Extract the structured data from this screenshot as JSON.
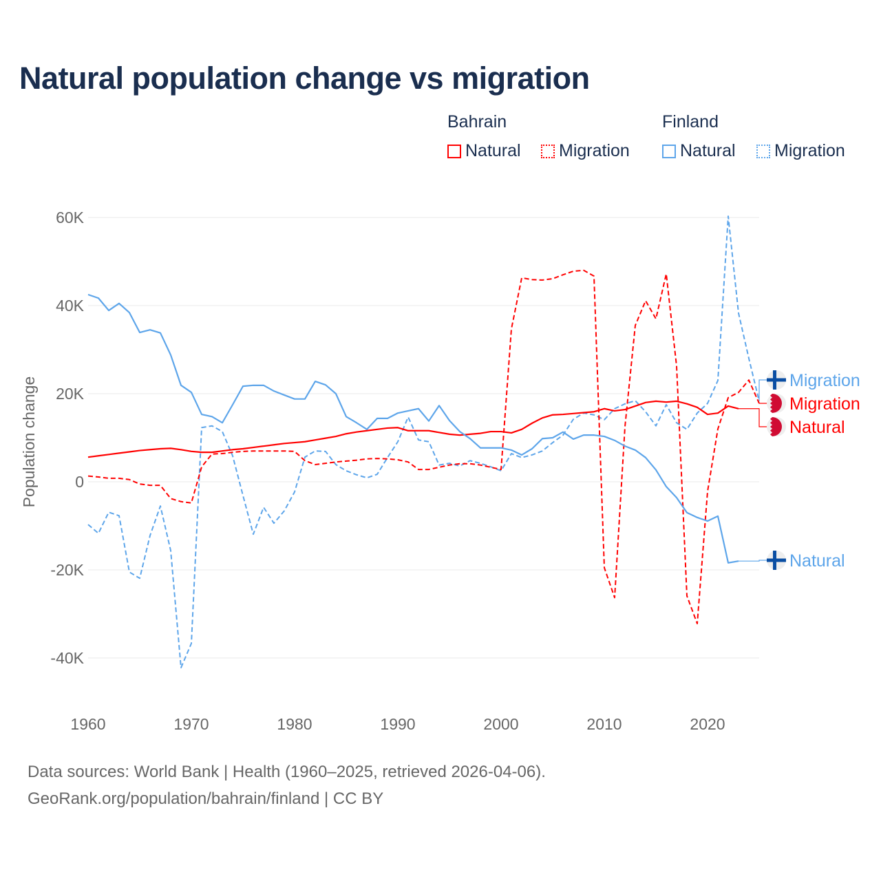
{
  "title": "Natural population change vs migration",
  "legend": {
    "groups": [
      {
        "name": "Bahrain",
        "items": [
          "Natural",
          "Migration"
        ]
      },
      {
        "name": "Finland",
        "items": [
          "Natural",
          "Migration"
        ]
      }
    ]
  },
  "footer": {
    "line1": "Data sources: World Bank | Health (1960–2025, retrieved 2026-04-06).",
    "line2": "GeoRank.org/population/bahrain/finland | CC BY"
  },
  "chart_data": {
    "type": "line",
    "title": "Natural population change vs migration",
    "xlabel": "",
    "ylabel": "Population change",
    "xlim": [
      1960,
      2025
    ],
    "ylim": [
      -40000,
      60000
    ],
    "x_ticks": [
      "1960",
      "1970",
      "1980",
      "1990",
      "2000",
      "2010",
      "2020"
    ],
    "y_ticks": [
      {
        "v": 60000,
        "t": "60K"
      },
      {
        "v": 40000,
        "t": "40K"
      },
      {
        "v": 20000,
        "t": "20K"
      },
      {
        "v": 0,
        "t": "0"
      },
      {
        "v": -20000,
        "t": "-20K"
      },
      {
        "v": -40000,
        "t": "-40K"
      }
    ],
    "grid": true,
    "series": [
      {
        "name": "Finland Migration",
        "label": "Migration",
        "country": "Finland",
        "color": "#5da5ea",
        "dash": true,
        "start": 1960,
        "values": [
          -9.7,
          -11.7,
          -6.9,
          -7.7,
          -20.5,
          -21.9,
          -12.2,
          -5.5,
          -15.6,
          -42.2,
          -36.7,
          12.3,
          12.7,
          11.4,
          5.9,
          -3.1,
          -11.9,
          -5.8,
          -9.4,
          -6.6,
          -2.3,
          5.6,
          7.0,
          6.9,
          3.9,
          2.5,
          1.6,
          0.9,
          1.7,
          5.5,
          9.1,
          14.7,
          9.5,
          9.1,
          3.8,
          4.2,
          3.6,
          4.8,
          4.2,
          3.4,
          2.5,
          6.4,
          5.5,
          6.1,
          7.0,
          8.9,
          10.6,
          14.2,
          15.6,
          15.2,
          14.1,
          16.6,
          17.7,
          18.4,
          15.9,
          12.7,
          17.5,
          13.4,
          11.9,
          15.6,
          17.8,
          23.0,
          60.3,
          38.3,
          28.0,
          18.3
        ]
      },
      {
        "name": "Bahrain Migration",
        "label": "Migration",
        "country": "Bahrain",
        "color": "#ff0000",
        "dash": true,
        "start": 1960,
        "values": [
          1.3,
          1.1,
          0.8,
          0.8,
          0.5,
          -0.5,
          -0.8,
          -0.8,
          -3.8,
          -4.5,
          -4.8,
          3.4,
          6.3,
          6.4,
          6.7,
          6.9,
          7.0,
          7.0,
          7.0,
          7.0,
          6.9,
          4.8,
          3.9,
          4.2,
          4.5,
          4.7,
          4.9,
          5.2,
          5.3,
          5.2,
          5.0,
          4.5,
          2.8,
          2.8,
          3.3,
          3.8,
          4.1,
          4.1,
          3.8,
          3.3,
          2.8,
          34.7,
          46.3,
          45.9,
          45.8,
          46.1,
          47.0,
          47.8,
          48.0,
          46.7,
          -19.5,
          -26.3,
          12.5,
          35.5,
          41.1,
          37.0,
          47.2,
          26.3,
          -25.9,
          -32.2,
          -2.2,
          12.0,
          19.1,
          20.3,
          23.1,
          17.8
        ]
      },
      {
        "name": "Bahrain Natural",
        "label": "Natural",
        "country": "Bahrain",
        "color": "#ff0000",
        "dash": false,
        "start": 1960,
        "values": [
          5.6,
          5.9,
          6.2,
          6.5,
          6.8,
          7.1,
          7.3,
          7.5,
          7.6,
          7.3,
          6.9,
          6.7,
          6.7,
          7.0,
          7.3,
          7.5,
          7.8,
          8.1,
          8.4,
          8.7,
          8.9,
          9.1,
          9.5,
          9.9,
          10.3,
          10.9,
          11.3,
          11.6,
          11.9,
          12.2,
          12.3,
          11.6,
          11.6,
          11.6,
          11.2,
          10.8,
          10.6,
          10.8,
          11.0,
          11.4,
          11.4,
          11.1,
          11.9,
          13.3,
          14.5,
          15.2,
          15.3,
          15.5,
          15.7,
          15.9,
          16.6,
          16.1,
          16.4,
          17.2,
          18.0,
          18.3,
          18.1,
          18.3,
          17.7,
          16.9,
          15.3,
          15.6,
          17.2,
          16.6
        ]
      },
      {
        "name": "Finland Natural",
        "label": "Natural",
        "country": "Finland",
        "color": "#5da5ea",
        "dash": false,
        "start": 1960,
        "values": [
          42.5,
          41.7,
          38.9,
          40.5,
          38.4,
          33.9,
          34.5,
          33.8,
          28.8,
          21.9,
          20.3,
          15.3,
          14.8,
          13.4,
          17.5,
          21.7,
          21.9,
          21.9,
          20.6,
          19.7,
          18.8,
          18.8,
          22.8,
          22.0,
          20.0,
          14.8,
          13.4,
          11.9,
          14.4,
          14.4,
          15.6,
          16.1,
          16.6,
          13.8,
          17.3,
          13.9,
          11.4,
          9.8,
          7.7,
          7.7,
          7.7,
          7.2,
          6.1,
          7.5,
          9.8,
          10.0,
          11.3,
          9.7,
          10.6,
          10.6,
          10.3,
          9.4,
          8.1,
          7.2,
          5.5,
          2.7,
          -1.1,
          -3.6,
          -7.0,
          -8.1,
          -8.9,
          -7.8,
          -18.4,
          -18.0
        ]
      }
    ],
    "value_unit": "thousands"
  },
  "colors": {
    "bahrain": "#ff0000",
    "finland": "#5da5ea",
    "title": "#1a2e4f"
  }
}
